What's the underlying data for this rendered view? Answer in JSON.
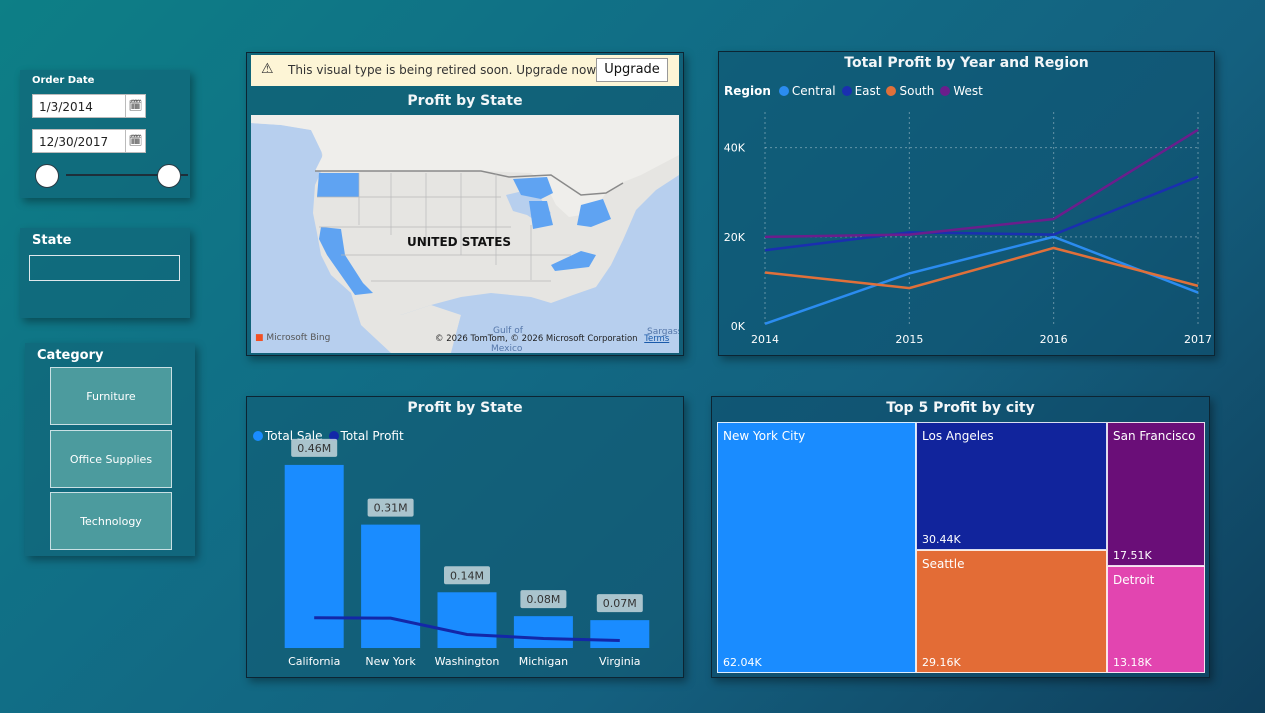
{
  "date_slicer": {
    "label": "Order Date",
    "start": "1/3/2014",
    "end": "12/30/2017",
    "calendar_icon": "calendar-icon"
  },
  "state_slicer": {
    "label": "State",
    "search_placeholder": ""
  },
  "category_slicer": {
    "label": "Category",
    "items": [
      "Furniture",
      "Office Supplies",
      "Technology"
    ]
  },
  "map_visual": {
    "warning_text": "This visual type is being retired soon. Upgrade now to...",
    "upgrade_label": "Upgrade",
    "title": "Profit by State",
    "country_label": "UNITED STATES",
    "provider": "Microsoft Bing",
    "attribution": "© 2026 TomTom, © 2026 Microsoft Corporation",
    "terms": "Terms",
    "gulf_label": "Gulf of",
    "mexico_label": "Mexico",
    "sargasso_label": "Sargass",
    "highlight_color": "#5fa3f2"
  },
  "line_chart": {
    "title": "Total Profit by Year and Region",
    "legend_title": "Region",
    "chart_data": {
      "type": "line",
      "x": [
        "2014",
        "2015",
        "2016",
        "2017"
      ],
      "y_ticks": [
        "0K",
        "20K",
        "40K"
      ],
      "ylim": [
        0,
        48000
      ],
      "series": [
        {
          "name": "Central",
          "color": "#2b8cf0",
          "values": [
            500,
            11800,
            20000,
            7500
          ]
        },
        {
          "name": "East",
          "color": "#1a2fb0",
          "values": [
            17000,
            21000,
            20500,
            33500
          ]
        },
        {
          "name": "South",
          "color": "#e0703a",
          "values": [
            12000,
            8500,
            17500,
            9000
          ]
        },
        {
          "name": "West",
          "color": "#6b1e8c",
          "values": [
            20000,
            20500,
            24000,
            44000
          ]
        }
      ]
    }
  },
  "bar_chart": {
    "title": "Profit by State",
    "legend": [
      {
        "name": "Total Sale",
        "color": "#1a8cff"
      },
      {
        "name": "Total Profit",
        "color": "#1327a8"
      }
    ],
    "chart_data": {
      "type": "bar",
      "categories": [
        "California",
        "New York",
        "Washington",
        "Michigan",
        "Virginia"
      ],
      "total_sale": [
        0.46,
        0.31,
        0.14,
        0.08,
        0.07
      ],
      "total_sale_labels": [
        "0.46M",
        "0.31M",
        "0.14M",
        "0.08M",
        "0.07M"
      ],
      "total_profit": [
        0.076,
        0.075,
        0.034,
        0.024,
        0.019
      ],
      "ylim": [
        0,
        0.5
      ]
    }
  },
  "treemap": {
    "title": "Top 5 Profit by city",
    "chart_data": {
      "type": "treemap",
      "items": [
        {
          "name": "New York City",
          "value": "62.04K",
          "color": "#1a8cff"
        },
        {
          "name": "Los Angeles",
          "value": "30.44K",
          "color": "#11249c"
        },
        {
          "name": "Seattle",
          "value": "29.16K",
          "color": "#e36c36"
        },
        {
          "name": "San Francisco",
          "value": "17.51K",
          "color": "#6a0e78"
        },
        {
          "name": "Detroit",
          "value": "13.18K",
          "color": "#e245b0"
        }
      ]
    }
  }
}
